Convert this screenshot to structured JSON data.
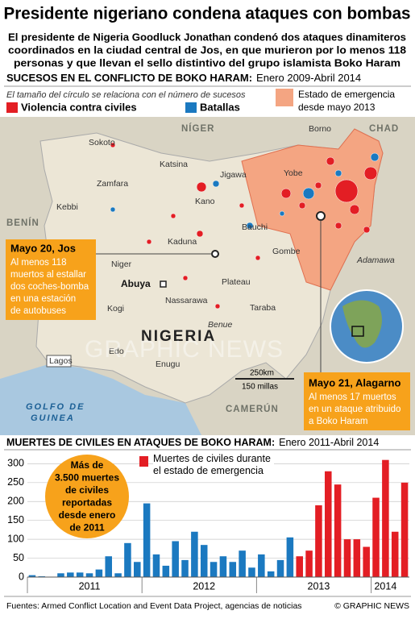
{
  "header": {
    "title": "Presidente nigeriano condena ataques con bombas",
    "subtitle": [
      "El presidente de Nigeria Goodluck Jonathan condenó dos ataques dinamiteros",
      "coordinados en la ciudad central de Jos, en que murieron por lo menos 118",
      "personas y que llevan el sello distintivo del grupo islamista Boko Haram"
    ]
  },
  "map": {
    "heading": "SUCESOS EN EL CONFLICTO DE BOKO HARAM:",
    "period": "Enero 2009-Abril 2014",
    "size_note": "El tamaño del círculo se relaciona con el número de sucesos",
    "legend": [
      "Violencia contra civiles",
      "Batallas"
    ],
    "emergency": [
      "Estado de emergencia",
      "desde mayo 2013"
    ],
    "countries": [
      "NÍGER",
      "CHAD",
      "BENÍN",
      "CAMERÚN",
      "NIGERIA",
      "GOLFO DE",
      "GUINEA"
    ],
    "states": [
      "Sokoto",
      "Katsina",
      "Jigawa",
      "Zamfara",
      "Kebbi",
      "Kano",
      "Yobe",
      "Borno",
      "Bauchi",
      "Kaduna",
      "Gombe",
      "Niger",
      "Adamawa",
      "Abuya",
      "Plateau",
      "Nassarawa",
      "Kogi",
      "Taraba",
      "Benue",
      "Edo",
      "Enugu",
      "Lagos"
    ],
    "scale": [
      "250km",
      "150 millas"
    ],
    "callouts": [
      {
        "title": "Mayo 20, Jos",
        "text": [
          "Al menos 118",
          "muertos al estallar",
          "dos coches-bomba",
          "en una estación",
          "de autobuses"
        ]
      },
      {
        "title": "Mayo 21, Alagarno",
        "text": [
          "Al menos 17 muertos",
          "en un ataque atribuido",
          "a Boko Haram"
        ]
      }
    ],
    "watermark": "GRAPHIC NEWS"
  },
  "chart_data": {
    "type": "bar",
    "title": "MUERTES DE CIVILES EN ATAQUES DE BOKO HARAM:",
    "subtitle": "Enero 2011-Abril 2014",
    "categories": [
      null,
      null,
      null,
      null,
      null,
      null,
      "2011",
      null,
      null,
      null,
      null,
      null,
      null,
      null,
      null,
      null,
      null,
      null,
      "2012",
      null,
      null,
      null,
      null,
      null,
      null,
      null,
      null,
      null,
      null,
      null,
      "2013",
      null,
      null,
      null,
      null,
      null,
      null,
      "2014",
      null,
      null
    ],
    "series": [
      {
        "color": "#1b79c0",
        "values": [
          5,
          2,
          0,
          10,
          12,
          12,
          10,
          20,
          55,
          10,
          90,
          40,
          195,
          60,
          30,
          95,
          45,
          120,
          85,
          40,
          55,
          40,
          70,
          25,
          60,
          15,
          45,
          105,
          null,
          null,
          null,
          null,
          null,
          null,
          null,
          null,
          null,
          null,
          null,
          null
        ]
      },
      {
        "name": "Muertes de civiles durante el estado de emergencia",
        "color": "#e31e24",
        "values": [
          null,
          null,
          null,
          null,
          null,
          null,
          null,
          null,
          null,
          null,
          null,
          null,
          null,
          null,
          null,
          null,
          null,
          null,
          null,
          null,
          null,
          null,
          null,
          null,
          null,
          null,
          null,
          null,
          55,
          70,
          190,
          280,
          245,
          100,
          100,
          80,
          210,
          310,
          120,
          250
        ]
      }
    ],
    "ylim": [
      0,
      320
    ],
    "yticks": [
      0,
      50,
      100,
      150,
      200,
      250,
      300
    ],
    "grid": true,
    "annotation": [
      "Más de",
      "3.500 muertes",
      "de civiles",
      "reportadas",
      "desde enero",
      "de 2011"
    ]
  },
  "footer": {
    "source": "Fuentes: Armed Conflict Location and Event Data Project, agencias de noticias",
    "credit": "© GRAPHIC NEWS"
  }
}
